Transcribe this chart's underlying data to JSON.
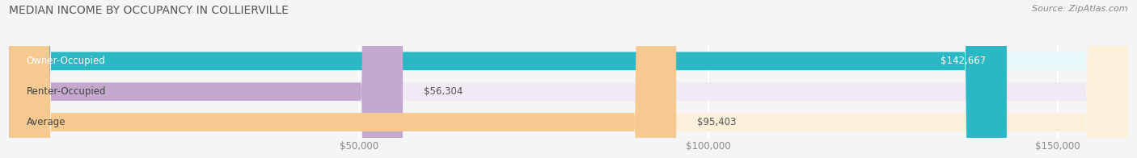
{
  "title": "MEDIAN INCOME BY OCCUPANCY IN COLLIERVILLE",
  "source": "Source: ZipAtlas.com",
  "categories": [
    "Owner-Occupied",
    "Renter-Occupied",
    "Average"
  ],
  "values": [
    142667,
    56304,
    95403
  ],
  "labels": [
    "$142,667",
    "$56,304",
    "$95,403"
  ],
  "bar_colors": [
    "#2ab8c5",
    "#c4a8d0",
    "#f5c990"
  ],
  "bar_bg_colors": [
    "#e8f9fb",
    "#f0eaf5",
    "#fdf0db"
  ],
  "x_max": 160000,
  "x_ticks": [
    50000,
    100000,
    150000
  ],
  "x_tick_labels": [
    "$50,000",
    "$100,000",
    "$150,000"
  ],
  "title_fontsize": 10,
  "source_fontsize": 8,
  "label_fontsize": 8.5,
  "tick_fontsize": 8.5,
  "bar_height": 0.6,
  "background_color": "#f5f5f5"
}
